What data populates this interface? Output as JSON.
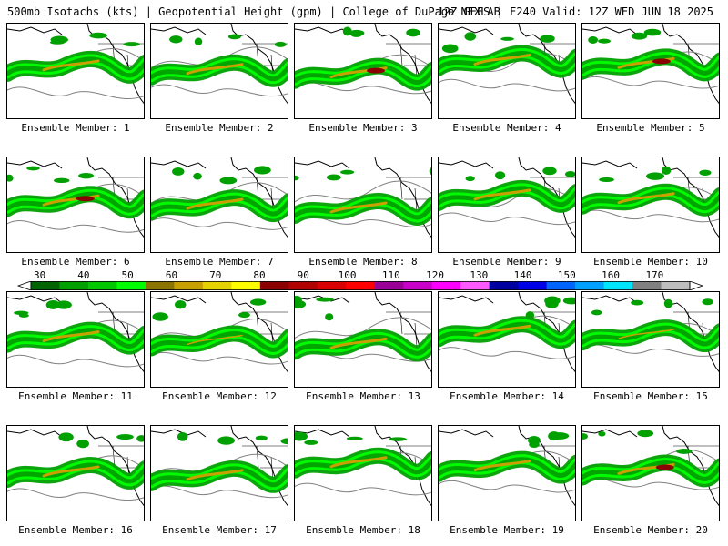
{
  "header": {
    "left_text": "500mb Isotachs (kts) | Geopotential Height (gpm) | College of DuPage NEXLAB",
    "right_text": "12Z GEFS | F240 Valid: 12Z WED JUN 18 2025"
  },
  "members": [
    {
      "label": "Ensemble Member: 1",
      "jet_strength": "moderate"
    },
    {
      "label": "Ensemble Member: 2",
      "jet_strength": "moderate"
    },
    {
      "label": "Ensemble Member: 3",
      "jet_strength": "strong"
    },
    {
      "label": "Ensemble Member: 4",
      "jet_strength": "moderate"
    },
    {
      "label": "Ensemble Member: 5",
      "jet_strength": "strong"
    },
    {
      "label": "Ensemble Member: 6",
      "jet_strength": "strong"
    },
    {
      "label": "Ensemble Member: 7",
      "jet_strength": "moderate"
    },
    {
      "label": "Ensemble Member: 8",
      "jet_strength": "moderate"
    },
    {
      "label": "Ensemble Member: 9",
      "jet_strength": "moderate"
    },
    {
      "label": "Ensemble Member: 10",
      "jet_strength": "moderate"
    },
    {
      "label": "Ensemble Member: 11",
      "jet_strength": "moderate"
    },
    {
      "label": "Ensemble Member: 12",
      "jet_strength": "weak"
    },
    {
      "label": "Ensemble Member: 13",
      "jet_strength": "moderate"
    },
    {
      "label": "Ensemble Member: 14",
      "jet_strength": "moderate"
    },
    {
      "label": "Ensemble Member: 15",
      "jet_strength": "weak"
    },
    {
      "label": "Ensemble Member: 16",
      "jet_strength": "moderate"
    },
    {
      "label": "Ensemble Member: 17",
      "jet_strength": "moderate"
    },
    {
      "label": "Ensemble Member: 18",
      "jet_strength": "moderate"
    },
    {
      "label": "Ensemble Member: 19",
      "jet_strength": "moderate"
    },
    {
      "label": "Ensemble Member: 20",
      "jet_strength": "strong"
    }
  ],
  "colorbar": {
    "labels": [
      "30",
      "40",
      "50",
      "60",
      "70",
      "80",
      "90",
      "100",
      "110",
      "120",
      "130",
      "140",
      "150",
      "160",
      "170"
    ],
    "colors": [
      "#006400",
      "#00a000",
      "#00c800",
      "#00ff00",
      "#8b7500",
      "#c8a000",
      "#e6d200",
      "#ffff00",
      "#8b0000",
      "#b00000",
      "#d80000",
      "#ff0000",
      "#9b0096",
      "#c800c8",
      "#ff00ff",
      "#ff5aff",
      "#0000a0",
      "#0000e6",
      "#0064ff",
      "#00a0ff",
      "#00e6ff",
      "#808080",
      "#bdbdbd"
    ],
    "legend_colors": {
      "jet_outer": "#00a000",
      "jet_mid": "#00ff00",
      "jet_core": "#c8a000",
      "jet_max": "#8b0000",
      "height_contour": "#808080",
      "coastline": "#000000"
    }
  }
}
